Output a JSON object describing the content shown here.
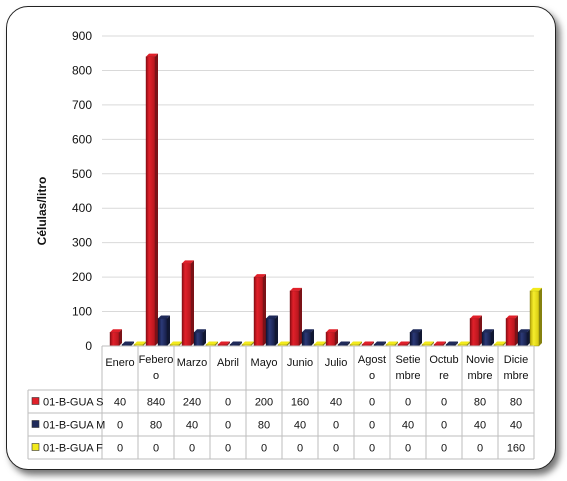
{
  "chart_data": {
    "type": "bar",
    "title": "",
    "xlabel": "",
    "ylabel": "Células/litro",
    "ylim": [
      0,
      900
    ],
    "yticks": [
      0,
      100,
      200,
      300,
      400,
      500,
      600,
      700,
      800,
      900
    ],
    "grid": true,
    "legend": "data-table-left",
    "categories": [
      [
        "Enero"
      ],
      [
        "Febero",
        "o"
      ],
      [
        "Marzo"
      ],
      [
        "Abril"
      ],
      [
        "Mayo"
      ],
      [
        "Junio"
      ],
      [
        "Julio"
      ],
      [
        "Agost",
        "o"
      ],
      [
        "Setie",
        "mbre"
      ],
      [
        "Octub",
        "re"
      ],
      [
        "Novie",
        "mbre"
      ],
      [
        "Dicie",
        "mbre"
      ]
    ],
    "series": [
      {
        "name": "01-B-GUA S",
        "color": "#e0202a",
        "values": [
          40,
          840,
          240,
          0,
          200,
          160,
          40,
          0,
          0,
          0,
          80,
          80
        ]
      },
      {
        "name": "01-B-GUA M",
        "color": "#1f2a5a",
        "values": [
          0,
          80,
          40,
          0,
          80,
          40,
          0,
          0,
          40,
          0,
          40,
          40
        ]
      },
      {
        "name": "01-B-GUA F",
        "color": "#f2ea1c",
        "values": [
          0,
          0,
          0,
          0,
          0,
          0,
          0,
          0,
          0,
          0,
          0,
          160
        ]
      }
    ]
  }
}
